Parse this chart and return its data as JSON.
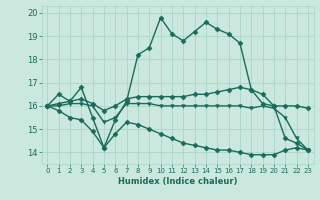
{
  "xlabel": "Humidex (Indice chaleur)",
  "background_color": "#cbe8df",
  "grid_color": "#a8d5c8",
  "line_color": "#1a6b5a",
  "xlim": [
    -0.5,
    23.5
  ],
  "ylim": [
    13.5,
    20.3
  ],
  "xticks": [
    0,
    1,
    2,
    3,
    4,
    5,
    6,
    7,
    8,
    9,
    10,
    11,
    12,
    13,
    14,
    15,
    16,
    17,
    18,
    19,
    20,
    21,
    22,
    23
  ],
  "yticks": [
    14,
    15,
    16,
    17,
    18,
    19,
    20
  ],
  "series": {
    "line1": [
      16.0,
      16.5,
      16.2,
      16.8,
      15.5,
      14.2,
      15.4,
      16.2,
      18.2,
      18.5,
      19.8,
      19.1,
      18.8,
      19.2,
      19.6,
      19.3,
      19.1,
      18.7,
      16.7,
      16.1,
      16.0,
      14.6,
      14.4,
      14.1
    ],
    "line2": [
      16.0,
      16.1,
      16.2,
      16.3,
      16.1,
      15.8,
      16.0,
      16.3,
      16.4,
      16.4,
      16.4,
      16.4,
      16.4,
      16.5,
      16.5,
      16.6,
      16.7,
      16.8,
      16.7,
      16.5,
      16.0,
      16.0,
      16.0,
      15.9
    ],
    "line3": [
      16.0,
      16.0,
      16.1,
      16.1,
      16.0,
      15.3,
      15.5,
      16.1,
      16.1,
      16.1,
      16.0,
      16.0,
      16.0,
      16.0,
      16.0,
      16.0,
      16.0,
      16.0,
      15.9,
      16.0,
      15.9,
      15.5,
      14.6,
      14.1
    ],
    "line4": [
      16.0,
      15.8,
      15.5,
      15.4,
      14.9,
      14.2,
      14.8,
      15.3,
      15.2,
      15.0,
      14.8,
      14.6,
      14.4,
      14.3,
      14.2,
      14.1,
      14.1,
      14.0,
      13.9,
      13.9,
      13.9,
      14.1,
      14.2,
      14.1
    ]
  },
  "markers": {
    "line1": "D",
    "line2": "D",
    "line3": "v",
    "line4": "D"
  },
  "marker_size": 2.5,
  "linewidth": 1.0
}
